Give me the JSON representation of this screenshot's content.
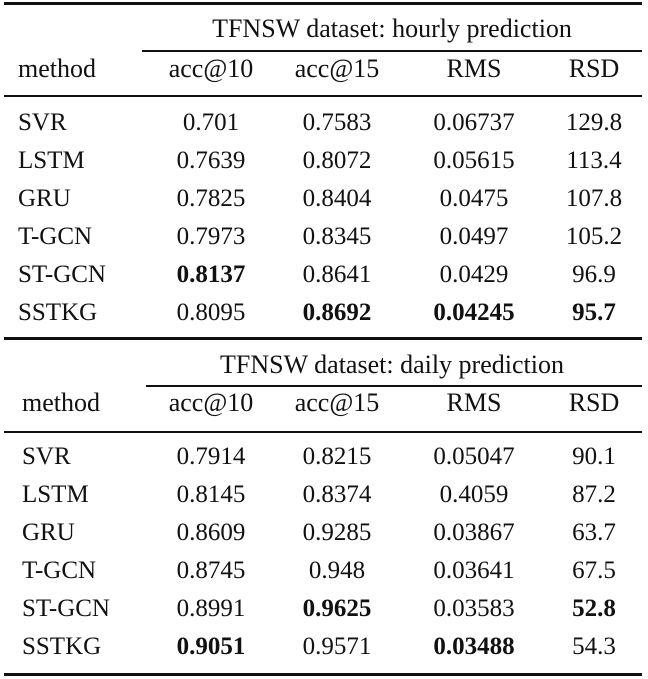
{
  "columns": [
    "method",
    "acc@10",
    "acc@15",
    "RMS",
    "RSD"
  ],
  "tables": [
    {
      "caption": "TFNSW dataset: hourly prediction",
      "rows": [
        {
          "method": "SVR",
          "acc10": "0.701",
          "acc15": "0.7583",
          "rms": "0.06737",
          "rsd": "129.8",
          "bold": []
        },
        {
          "method": "LSTM",
          "acc10": "0.7639",
          "acc15": "0.8072",
          "rms": "0.05615",
          "rsd": "113.4",
          "bold": []
        },
        {
          "method": "GRU",
          "acc10": "0.7825",
          "acc15": "0.8404",
          "rms": "0.0475",
          "rsd": "107.8",
          "bold": []
        },
        {
          "method": "T-GCN",
          "acc10": "0.7973",
          "acc15": "0.8345",
          "rms": "0.0497",
          "rsd": "105.2",
          "bold": []
        },
        {
          "method": "ST-GCN",
          "acc10": "0.8137",
          "acc15": "0.8641",
          "rms": "0.0429",
          "rsd": "96.9",
          "bold": [
            "acc10"
          ]
        },
        {
          "method": "SSTKG",
          "acc10": "0.8095",
          "acc15": "0.8692",
          "rms": "0.04245",
          "rsd": "95.7",
          "bold": [
            "acc15",
            "rms",
            "rsd"
          ]
        }
      ]
    },
    {
      "caption": "TFNSW dataset: daily prediction",
      "rows": [
        {
          "method": "SVR",
          "acc10": "0.7914",
          "acc15": "0.8215",
          "rms": "0.05047",
          "rsd": "90.1",
          "bold": []
        },
        {
          "method": "LSTM",
          "acc10": "0.8145",
          "acc15": "0.8374",
          "rms": "0.4059",
          "rsd": "87.2",
          "bold": []
        },
        {
          "method": "GRU",
          "acc10": "0.8609",
          "acc15": "0.9285",
          "rms": "0.03867",
          "rsd": "63.7",
          "bold": []
        },
        {
          "method": "T-GCN",
          "acc10": "0.8745",
          "acc15": "0.948",
          "rms": "0.03641",
          "rsd": "67.5",
          "bold": []
        },
        {
          "method": "ST-GCN",
          "acc10": "0.8991",
          "acc15": "0.9625",
          "rms": "0.03583",
          "rsd": "52.8",
          "bold": [
            "acc15",
            "rsd"
          ]
        },
        {
          "method": "SSTKG",
          "acc10": "0.9051",
          "acc15": "0.9571",
          "rms": "0.03488",
          "rsd": "54.3",
          "bold": [
            "acc10",
            "rms"
          ]
        }
      ]
    }
  ]
}
